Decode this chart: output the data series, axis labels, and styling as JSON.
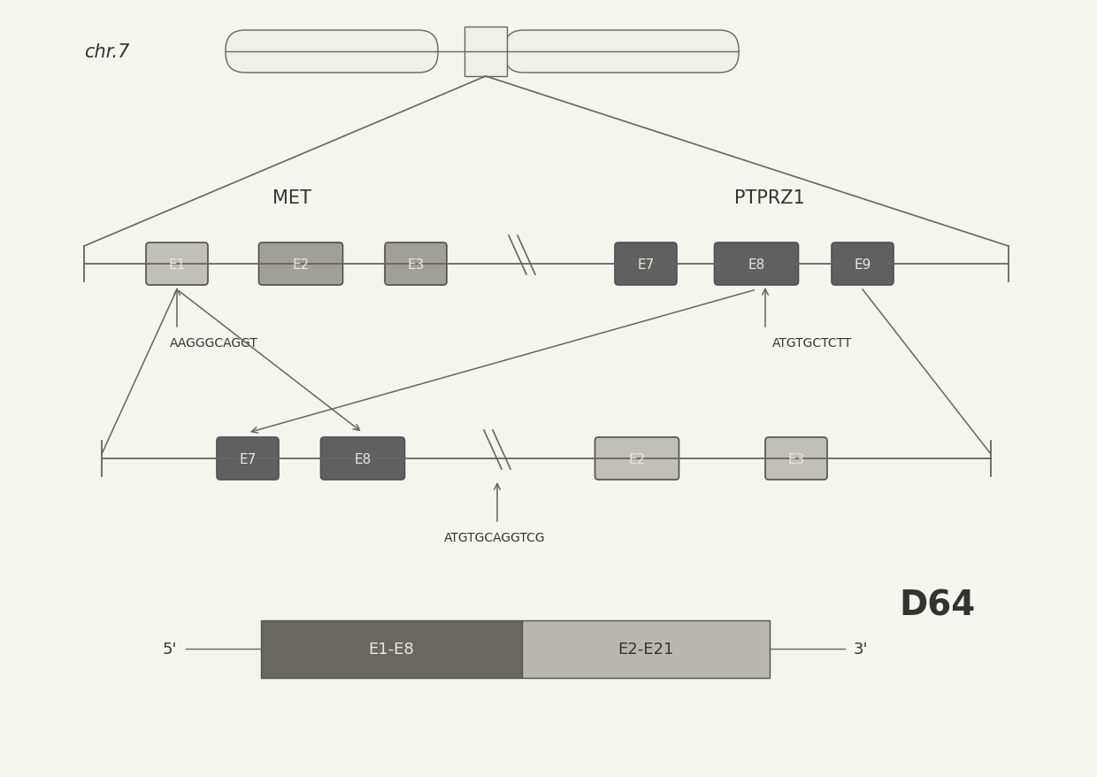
{
  "background_color": "#f5f5f0",
  "chr7_label": "chr.7",
  "met_label": "MET",
  "ptprz1_label": "PTPRZ1",
  "d64_label": "D64",
  "seq_left": "AAGGGCAGGT",
  "seq_right": "ATGTGCTCTT",
  "seq_bottom": "ATGTGCAGGTCG",
  "label_5prime": "5'",
  "label_3prime": "3'",
  "color_dark_gray": "#606060",
  "color_light_gray": "#c0c0b8",
  "color_mid_gray": "#a0a098",
  "color_line": "#666660",
  "color_text_white": "#e8e8e0",
  "color_text_dark": "#333330",
  "color_chr_fill": "#f0f0eb",
  "color_d64_segment1": "#686860",
  "color_d64_segment2": "#b8b8b0",
  "color_box_outline": "#505050"
}
